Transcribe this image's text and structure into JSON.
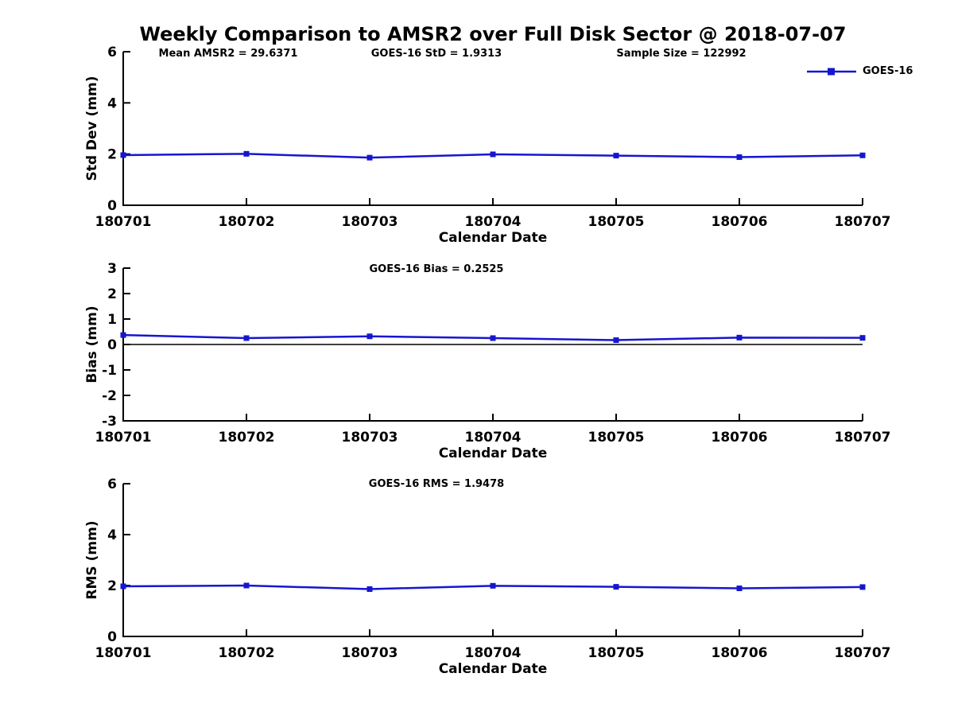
{
  "title": "Weekly Comparison to AMSR2 over Full Disk Sector @ 2018-07-07",
  "legend": {
    "label": "GOES-16"
  },
  "colors": {
    "line": "#1616d0",
    "axis": "#000000",
    "text": "#000000",
    "background": "#ffffff"
  },
  "chart_data": [
    {
      "type": "line",
      "name": "std-dev",
      "ylabel": "Std Dev (mm)",
      "xlabel": "Calendar Date",
      "categories": [
        "180701",
        "180702",
        "180703",
        "180704",
        "180705",
        "180706",
        "180707"
      ],
      "series": [
        {
          "name": "GOES-16",
          "values": [
            1.96,
            2.01,
            1.86,
            1.99,
            1.94,
            1.88,
            1.95
          ]
        }
      ],
      "ylim": [
        0,
        6
      ],
      "yticks": [
        0,
        2,
        4,
        6
      ],
      "zero_line": false,
      "grid": false,
      "legend_position": "top-right-outside",
      "annotations": [
        "Mean AMSR2 = 29.6371",
        "GOES-16 StD = 1.9313",
        "Sample Size = 122992"
      ]
    },
    {
      "type": "line",
      "name": "bias",
      "ylabel": "Bias (mm)",
      "xlabel": "Calendar Date",
      "categories": [
        "180701",
        "180702",
        "180703",
        "180704",
        "180705",
        "180706",
        "180707"
      ],
      "series": [
        {
          "name": "GOES-16",
          "values": [
            0.37,
            0.25,
            0.32,
            0.25,
            0.17,
            0.27,
            0.26
          ]
        }
      ],
      "ylim": [
        -3,
        3
      ],
      "yticks": [
        -3,
        -2,
        -1,
        0,
        1,
        2,
        3
      ],
      "zero_line": true,
      "grid": false,
      "annotations": [
        "GOES-16 Bias  = 0.2525"
      ]
    },
    {
      "type": "line",
      "name": "rms",
      "ylabel": "RMS (mm)",
      "xlabel": "Calendar Date",
      "categories": [
        "180701",
        "180702",
        "180703",
        "180704",
        "180705",
        "180706",
        "180707"
      ],
      "series": [
        {
          "name": "GOES-16",
          "values": [
            1.97,
            2.0,
            1.86,
            1.99,
            1.95,
            1.89,
            1.94
          ]
        }
      ],
      "ylim": [
        0,
        6
      ],
      "yticks": [
        0,
        2,
        4,
        6
      ],
      "zero_line": false,
      "grid": false,
      "annotations": [
        "GOES-16 RMS = 1.9478"
      ]
    }
  ]
}
